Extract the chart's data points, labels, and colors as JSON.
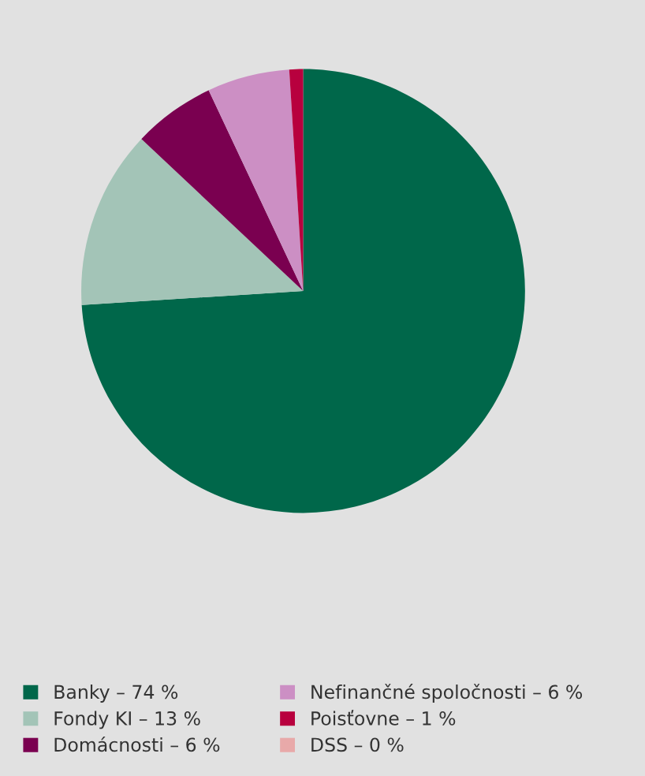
{
  "chart_data": {
    "type": "pie",
    "categories": [
      "Banky – 74 %",
      "Fondy KI – 13 %",
      "Domácnosti – 6 %",
      "Nefinančné spoločnosti – 6 %",
      "Poisťovne – 1 %",
      "DSS – 0 %"
    ],
    "values": [
      74,
      13,
      6,
      6,
      1,
      0
    ],
    "colors": [
      "#00674a",
      "#a3c4b7",
      "#7a0050",
      "#cc8fc4",
      "#b8003e",
      "#e8a9a9"
    ],
    "legend": "bottom"
  }
}
